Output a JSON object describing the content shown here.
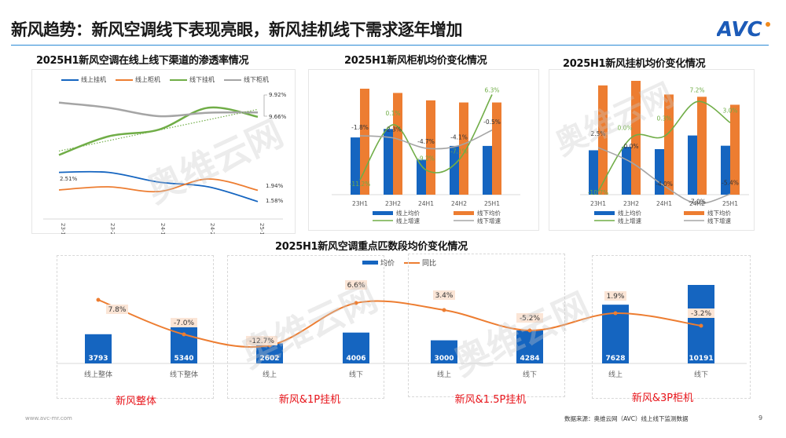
{
  "header": {
    "title": "新风趋势：新风空调线下表现亮眼，新风挂机线下需求逐年增加",
    "logo_text": "AVC",
    "logo_color": "#1c5bb8",
    "logo_dot_color": "#f08a1c"
  },
  "footer": {
    "website": "www.avc-mr.com",
    "source": "数据来源：奥维云网（AVC）线上线下监测数据",
    "page_number": "9"
  },
  "watermark": {
    "brand": "奥维云网",
    "sub": "ALL VIEW CLOUD"
  },
  "colors": {
    "blue": "#1565c0",
    "orange": "#ed7d31",
    "green": "#70ad47",
    "gray": "#a5a5a5",
    "red_label": "#e8151b",
    "label_bg": "#fbe5d6"
  },
  "chart_data": [
    {
      "id": "penetration",
      "type": "line",
      "title": "2025H1新风空调在线上线下渠道的渗透率情况",
      "categories": [
        "23H1",
        "23H2",
        "24H1",
        "24H2",
        "25H1"
      ],
      "series": [
        {
          "name": "线上挂机",
          "color": "#1565c0",
          "values": [
            2.51,
            2.51,
            2.2,
            2.05,
            1.58
          ]
        },
        {
          "name": "线上柜机",
          "color": "#ed7d31",
          "values": [
            1.95,
            2.05,
            1.9,
            2.3,
            1.94
          ]
        },
        {
          "name": "线下挂机",
          "color": "#70ad47",
          "values": [
            7.4,
            8.5,
            8.9,
            10.2,
            9.66
          ]
        },
        {
          "name": "线下柜机",
          "color": "#a5a5a5",
          "values": [
            10.5,
            10.2,
            9.7,
            9.9,
            9.92
          ]
        }
      ],
      "trendline": {
        "series": "线下挂机",
        "style": "dotted",
        "color": "#70ad47"
      },
      "annotations": [
        "2.51%",
        "9.92%",
        "9.66%",
        "1.94%",
        "1.58%"
      ],
      "xlabel": "",
      "ylabel": "",
      "legend_position": "top",
      "grid": false
    },
    {
      "id": "cabinet-price",
      "type": "bar",
      "title": "2025H1新风柜机均价变化情况",
      "categories": [
        "23H1",
        "23H2",
        "24H1",
        "24H2",
        "25H1"
      ],
      "series": [
        {
          "name": "线上均价",
          "kind": "bar",
          "color": "#1565c0",
          "values": [
            54,
            62,
            33,
            46,
            46
          ]
        },
        {
          "name": "线下均价",
          "kind": "bar",
          "color": "#ed7d31",
          "values": [
            100,
            96,
            89,
            87,
            87
          ]
        },
        {
          "name": "线上增速",
          "kind": "line",
          "color": "#70ad47",
          "values": [
            -11.2,
            0.1,
            -9.2,
            -7.1,
            6.3
          ],
          "labels": [
            "-11.2%",
            "0.1%",
            "-9.2%",
            "-7.1%",
            "6.3%"
          ]
        },
        {
          "name": "线下增速",
          "kind": "line",
          "color": "#a5a5a5",
          "values": [
            -1.8,
            -2.3,
            -4.7,
            -4.1,
            -0.5
          ],
          "labels": [
            "-1.8%",
            "-2.3%",
            "-4.7%",
            "-4.1%",
            "-0.5%"
          ]
        }
      ],
      "legend": [
        "线上均价",
        "线下均价",
        "线上增速",
        "线下增速"
      ],
      "legend_position": "bottom",
      "note": "bar values are relative heights (no y-axis shown)"
    },
    {
      "id": "wall-price",
      "type": "bar",
      "title": "2025H1新风挂机均价变化情况",
      "categories": [
        "23H1",
        "23H2",
        "24H1",
        "24H2",
        "25H1"
      ],
      "series": [
        {
          "name": "线上均价",
          "kind": "bar",
          "color": "#1565c0",
          "values": [
            39,
            42,
            40,
            52,
            43
          ]
        },
        {
          "name": "线下均价",
          "kind": "bar",
          "color": "#ed7d31",
          "values": [
            96,
            100,
            88,
            86,
            79
          ]
        },
        {
          "name": "线上增速",
          "kind": "line",
          "color": "#70ad47",
          "values": [
            -10.7,
            0.0,
            0.3,
            7.2,
            3.0
          ],
          "labels": [
            "-10.7%",
            "0.0%",
            "0.3%",
            "7.2%",
            "3.0%"
          ]
        },
        {
          "name": "线下增速",
          "kind": "line",
          "color": "#a5a5a5",
          "values": [
            2.5,
            0.0,
            -4.0,
            -7.0,
            -5.4
          ],
          "labels": [
            "2.5%",
            "0.0%",
            "-4.0%",
            "-7.0%",
            "-5.4%"
          ]
        }
      ],
      "legend": [
        "线上均价",
        "线下均价",
        "线上增速",
        "线下增速"
      ],
      "legend_position": "bottom",
      "note": "bar values are relative heights (no y-axis shown)"
    },
    {
      "id": "segment-price",
      "type": "bar",
      "title": "2025H1新风空调重点匹数段均价变化情况",
      "categories": [
        "线上整体",
        "线下整体",
        "线上",
        "线下",
        "线上",
        "线下",
        "线上",
        "线下"
      ],
      "groups": [
        {
          "name": "新风整体",
          "span": [
            0,
            1
          ]
        },
        {
          "name": "新风&1P挂机",
          "span": [
            2,
            3
          ]
        },
        {
          "name": "新风&1.5P挂机",
          "span": [
            4,
            5
          ]
        },
        {
          "name": "新风&3P柜机",
          "span": [
            6,
            7
          ]
        }
      ],
      "series": [
        {
          "name": "均价",
          "kind": "bar",
          "color": "#1565c0",
          "values": [
            3793,
            5340,
            2602,
            4006,
            3000,
            4284,
            7628,
            10191
          ]
        },
        {
          "name": "同比",
          "kind": "line",
          "color": "#ed7d31",
          "values": [
            7.8,
            -7.0,
            -12.7,
            6.6,
            3.4,
            -5.2,
            1.9,
            -3.2
          ],
          "labels": [
            "7.8%",
            "-7.0%",
            "-12.7%",
            "6.6%",
            "3.4%",
            "-5.2%",
            "1.9%",
            "-3.2%"
          ]
        }
      ],
      "legend": [
        "均价",
        "同比"
      ],
      "legend_position": "top"
    }
  ]
}
